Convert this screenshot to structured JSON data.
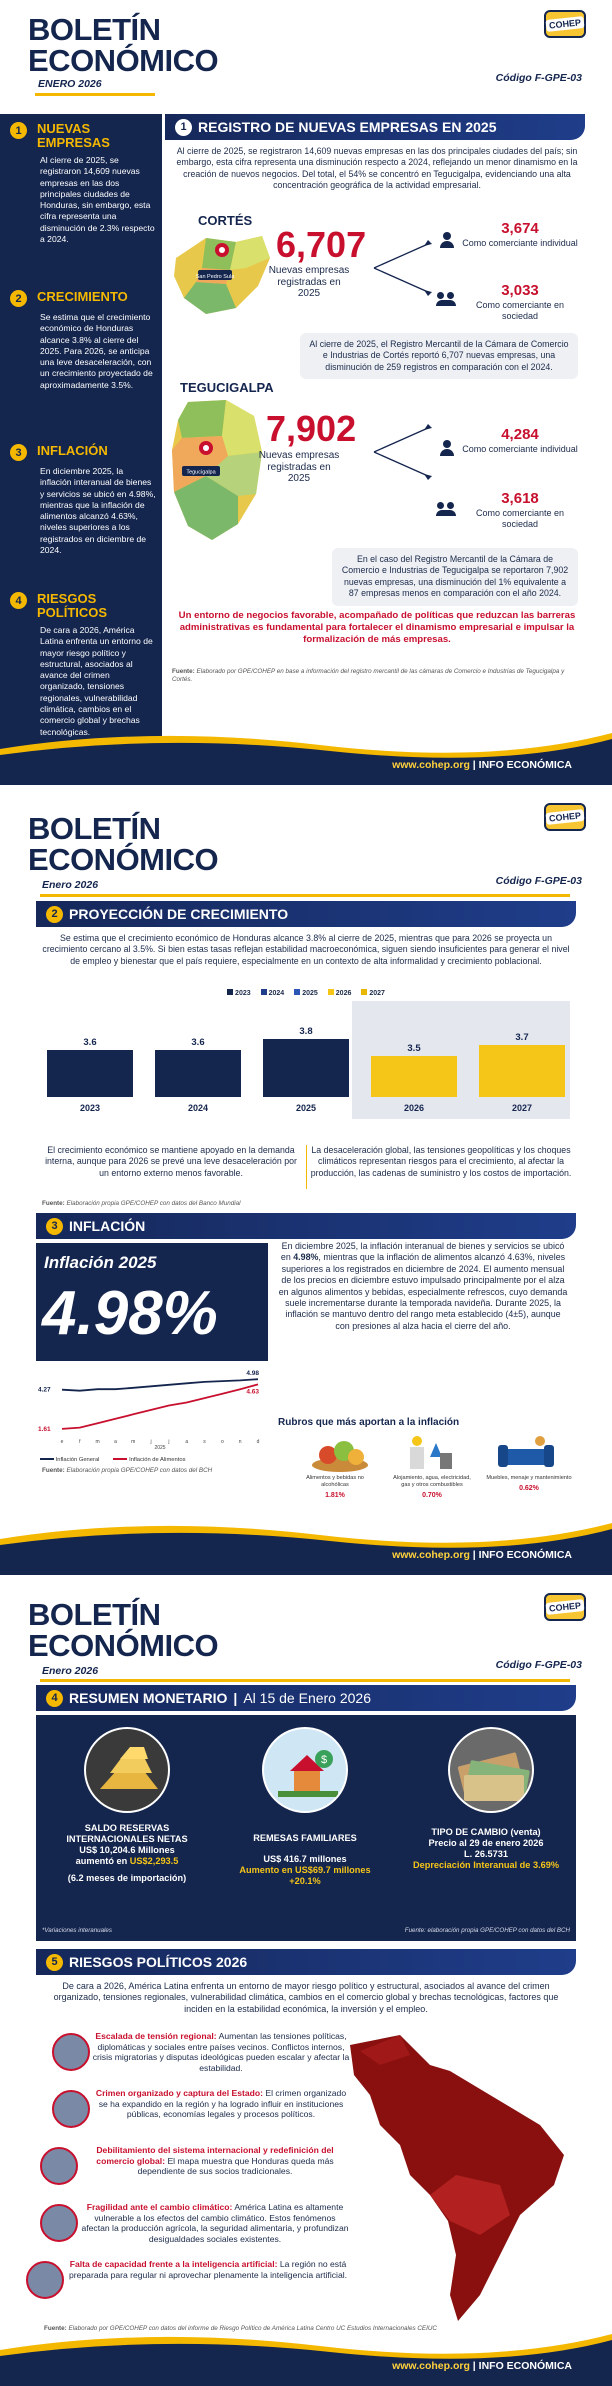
{
  "header": {
    "title1": "BOLETÍN",
    "title2": "ECONÓMICO",
    "date_p1": "ENERO 2026",
    "date": "Enero 2026",
    "code": "Código F-GPE-03",
    "logo": "COHEP"
  },
  "footer": {
    "url": "www.cohep.org",
    "sep": "|",
    "label": "INFO ECONÓMICA"
  },
  "sidebar": [
    {
      "num": "1",
      "title": "NUEVAS EMPRESAS",
      "text": "Al cierre de 2025, se registraron 14,609 nuevas empresas en las dos principales ciudades de Honduras, sin embargo, esta cifra representa una disminución de 2.3% respecto a 2024."
    },
    {
      "num": "2",
      "title": "CRECIMIENTO",
      "text": "Se estima que el crecimiento económico de Honduras alcance 3.8% al cierre del 2025. Para 2026, se anticipa una leve desaceleración, con un crecimiento proyectado de aproximadamente 3.5%."
    },
    {
      "num": "3",
      "title": "INFLACIÓN",
      "text": "En diciembre 2025, la inflación interanual de bienes y servicios se ubicó en 4.98%, mientras que la inflación de alimentos alcanzó 4.63%, niveles superiores a los registrados en diciembre de 2024."
    },
    {
      "num": "4",
      "title": "RIESGOS POLÍTICOS",
      "text": "De cara a 2026, América Latina enfrenta un entorno de mayor riesgo político y estructural, asociados al avance del crimen organizado, tensiones regionales, vulnerabilidad climática, cambios en el comercio global y brechas tecnológicas."
    }
  ],
  "s1": {
    "num": "1",
    "title": "REGISTRO DE NUEVAS EMPRESAS EN 2025",
    "intro": "Al cierre de 2025, se registraron 14,609 nuevas empresas en las dos principales ciudades del país; sin embargo, esta cifra representa una disminución respecto a 2024, reflejando un menor dinamismo en la creación de nuevos negocios. Del total, el 54% se concentró en Tegucigalpa, evidenciando una alta concentración geográfica de la actividad empresarial.",
    "cortes": {
      "name": "CORTÉS",
      "city": "San Pedro Sula",
      "total": "6,707",
      "total_label": "Nuevas empresas registradas en 2025",
      "ind": "3,674",
      "ind_label": "Como comerciante individual",
      "soc": "3,033",
      "soc_label": "Como comerciante en sociedad",
      "note": "Al cierre de 2025, el Registro Mercantil de la Cámara de Comercio e Industrias de Cortés reportó 6,707 nuevas empresas, una disminución de 259 registros en comparación con el 2024."
    },
    "teguc": {
      "name": "TEGUCIGALPA",
      "city": "Tegucigalpa",
      "total": "7,902",
      "total_label": "Nuevas empresas registradas en 2025",
      "ind": "4,284",
      "ind_label": "Como comerciante individual",
      "soc": "3,618",
      "soc_label": "Como comerciante en sociedad",
      "note": "En el caso del Registro Mercantil de la Cámara de Comercio e Industrias de Tegucigalpa se reportaron 7,902 nuevas empresas, una disminución del 1% equivalente a 87 empresas menos en comparación con el año 2024."
    },
    "closing": "Un entorno de negocios favorable, acompañado de políticas que reduzcan las barreras administrativas es fundamental para fortalecer el dinamismo empresarial e impulsar la formalización de más empresas.",
    "source_label": "Fuente:",
    "source": "Elaborado por GPE/COHEP en base a información del registro mercantil de las cámaras de Comercio e Industrias de Tegucigalpa y Cortés."
  },
  "s2": {
    "num": "2",
    "title": "PROYECCIÓN DE CRECIMIENTO",
    "intro": "Se estima que el crecimiento económico de Honduras alcance 3.8% al cierre de 2025, mientras que para 2026 se proyecta un crecimiento cercano al 3.5%. Si bien estas tasas reflejan estabilidad macroeconómica, siguen siendo insuficientes para generar el nivel de empleo y bienestar que el país requiere, especialmente en un contexto de alta informalidad y crecimiento poblacional.",
    "left_note": "El crecimiento económico se mantiene apoyado en la demanda interna, aunque para 2026 se prevé una leve desaceleración por un entorno externo menos favorable.",
    "right_note": "La desaceleración global, las tensiones geopolíticas y los choques climáticos representan riesgos para el crecimiento, al afectar la producción, las cadenas de suministro y los costos de importación.",
    "source_label": "Fuente:",
    "source": "Elaboración propia GPE/COHEP con datos del Banco Mundial"
  },
  "chart_data": {
    "type": "bar",
    "categories": [
      "2023",
      "2024",
      "2025",
      "2026",
      "2027"
    ],
    "values": [
      3.6,
      3.6,
      3.8,
      3.5,
      3.7
    ],
    "labels": [
      "3.6",
      "3.6",
      "3.8",
      "3.5",
      "3.7"
    ],
    "legend": [
      "2023",
      "2024",
      "2025",
      "2026",
      "2027"
    ],
    "colors": {
      "actual": "#14254e",
      "projected": "#f5c518"
    },
    "projected_from": "2026",
    "ylim": [
      0,
      4
    ],
    "grid": false,
    "legend_position": "top-center"
  },
  "s3": {
    "num": "3",
    "title": "INFLACIÓN",
    "card_title": "Inflación 2025",
    "card_value": "4.98%",
    "text_pre": "En diciembre 2025, la inflación interanual de bienes y servicios se ubicó en ",
    "text_bold": "4.98%",
    "text_post": ", mientras que la inflación de alimentos alcanzó 4.63%, niveles superiores a los registrados en diciembre de 2024. El aumento mensual de los precios en diciembre estuvo impulsado principalmente por el alza en algunos alimentos y bebidas, especialmente refrescos, cuyo demanda suele incrementarse durante la temporada navideña. Durante 2025, la inflación se mantuvo dentro del rango meta establecido (4±5), aunque con presiones al alza hacia el cierre del año.",
    "line": {
      "months": [
        "e",
        "f",
        "m",
        "a",
        "m",
        "j",
        "j",
        "a",
        "s",
        "o",
        "n",
        "d"
      ],
      "year": "2025",
      "general": [
        4.27,
        4.2,
        4.3,
        4.3,
        4.4,
        4.5,
        4.6,
        4.7,
        4.8,
        4.85,
        4.9,
        4.98
      ],
      "food": [
        1.61,
        1.7,
        2.0,
        2.3,
        2.6,
        2.9,
        3.2,
        3.4,
        3.7,
        4.0,
        4.3,
        4.63
      ],
      "start_general": "4.27",
      "start_food": "1.61",
      "end_general": "4.98",
      "end_food": "4.63",
      "legend_general": "Inflación General",
      "legend_food": "Inflación de Alimentos"
    },
    "rubros_title": "Rubros que más aportan a la inflación",
    "rubros": [
      {
        "label": "Alimentos y bebidas no alcohólicas",
        "value": "1.81%"
      },
      {
        "label": "Alojamiento, agua, electricidad, gas y otros combustibles",
        "value": "0.70%"
      },
      {
        "label": "Muebles, menaje y mantenimiento",
        "value": "0.62%"
      }
    ],
    "source_label": "Fuente:",
    "source": "Elaboración propia GPE/COHEP con datos del BCH"
  },
  "s4": {
    "num": "4",
    "title": "RESUMEN MONETARIO",
    "title_sep": "|",
    "subtitle": "Al 15 de Enero 2026",
    "reservas": {
      "title": "SALDO RESERVAS INTERNACIONALES NETAS",
      "value": "US$ 10,204.6 Millones",
      "change_pre": "aumentó en ",
      "change": "US$2,293.5",
      "months": "(6.2 meses de importación)"
    },
    "remesas": {
      "title": "REMESAS FAMILIARES",
      "value": "US$ 416.7 millones",
      "change": "Aumento en US$69.7 millones",
      "pct": "+20.1%"
    },
    "cambio": {
      "title": "TIPO DE CAMBIO (venta)",
      "date": "Precio al 29 de enero 2026",
      "value": "L. 26.5731",
      "dep": "Depreciación Interanual de 3.69%"
    },
    "note": "*Variaciones interanuales",
    "source": "Fuente: elaboración propia GPE/COHEP con datos del BCH"
  },
  "s5": {
    "num": "5",
    "title": "RIESGOS POLÍTICOS 2026",
    "intro": "De cara a 2026, América Latina enfrenta un entorno de mayor riesgo político y estructural, asociados al avance del crimen organizado, tensiones regionales, vulnerabilidad climática, cambios en el comercio global y brechas tecnológicas, factores que inciden en la estabilidad económica, la inversión y el empleo.",
    "risks": [
      {
        "title": "Escalada de tensión regional:",
        "text": "Aumentan las tensiones políticas, diplomáticas y sociales entre países vecinos. Conflictos internos, crisis migratorias y disputas ideológicas pueden escalar y afectar la estabilidad."
      },
      {
        "title": "Crimen organizado y captura del Estado:",
        "text": "El crimen organizado se ha expandido en la región y ha logrado influir en instituciones públicas, economías legales y procesos políticos."
      },
      {
        "title": "Debilitamiento del sistema internacional y redefinición del comercio global:",
        "text": "El mapa muestra que Honduras queda más dependiente de sus socios tradicionales."
      },
      {
        "title": "Fragilidad ante el cambio climático:",
        "text": "América Latina es altamente vulnerable a los efectos del cambio climático. Estos fenómenos afectan la producción agrícola, la seguridad alimentaria, y profundizan desigualdades sociales existentes."
      },
      {
        "title": "Falta de capacidad frente a la inteligencia artificial:",
        "text": "La región no está preparada para regular ni aprovechar plenamente la inteligencia artificial."
      }
    ],
    "source_label": "Fuente:",
    "source": "Elaborado por GPE/COHEP con datos del informe de Riesgo Político de América Latina Centro UC Estudios Internacionales CEIUC"
  }
}
